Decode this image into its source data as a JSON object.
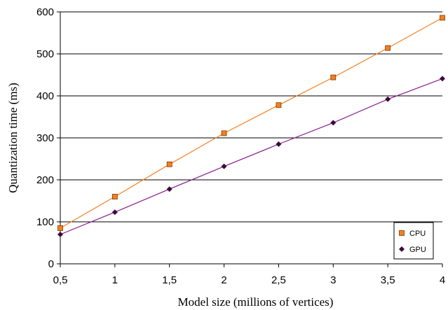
{
  "chart_data": {
    "type": "line",
    "title": "",
    "xlabel": "Model size (millions of vertices)",
    "ylabel": "Quantization time (ms)",
    "x": [
      0.5,
      1,
      1.5,
      2,
      2.5,
      3,
      3.5,
      4
    ],
    "x_tick_labels": [
      "0,5",
      "1",
      "1,5",
      "2",
      "2,5",
      "3",
      "3,5",
      "4"
    ],
    "xlim": [
      0.5,
      4
    ],
    "ylim": [
      0,
      600
    ],
    "y_ticks": [
      0,
      100,
      200,
      300,
      400,
      500,
      600
    ],
    "y_tick_labels": [
      "0",
      "100",
      "200",
      "300",
      "400",
      "500",
      "600"
    ],
    "grid": "horizontal",
    "legend_position": "bottom-right",
    "series": [
      {
        "name": "CPU",
        "color": "#f47f20",
        "marker_fill": "#f47f20",
        "marker": "square",
        "values": [
          85,
          160,
          237,
          311,
          378,
          444,
          514,
          586
        ]
      },
      {
        "name": "GPU",
        "color": "#8a1b8a",
        "marker_fill": "#3d0a3d",
        "marker": "diamond",
        "values": [
          70,
          123,
          178,
          232,
          285,
          336,
          392,
          441
        ]
      }
    ]
  }
}
